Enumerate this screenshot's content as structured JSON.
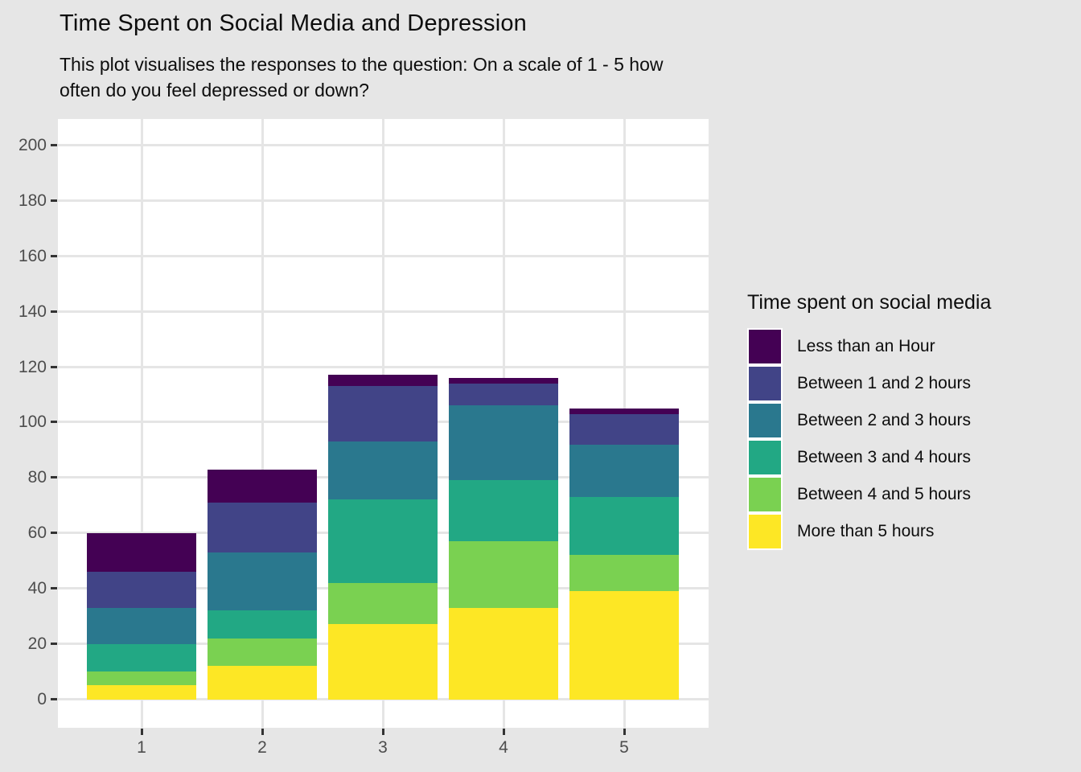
{
  "figure": {
    "title": "Time Spent on Social Media and Depression",
    "subtitle_lines": [
      "This plot visualises the responses to the question: On a scale of 1 - 5 how",
      "often do you feel depressed or down?"
    ]
  },
  "chart_data": {
    "type": "bar",
    "stacked": true,
    "stack_order": "first-series-on-top",
    "title": "Time Spent on Social Media and Depression",
    "subtitle": "This plot visualises the responses to the question: On a scale of 1 - 5 how often do you feel depressed or down?",
    "xlabel": "",
    "ylabel": "",
    "categories": [
      "1",
      "2",
      "3",
      "4",
      "5"
    ],
    "series": [
      {
        "name": "Less than an Hour",
        "color": "#440154",
        "values": [
          14,
          12,
          4,
          2,
          2
        ]
      },
      {
        "name": "Between 1 and 2 hours",
        "color": "#414487",
        "values": [
          13,
          18,
          20,
          8,
          11
        ]
      },
      {
        "name": "Between 2 and 3 hours",
        "color": "#2a788e",
        "values": [
          13,
          21,
          21,
          27,
          19
        ]
      },
      {
        "name": "Between 3 and 4 hours",
        "color": "#22a884",
        "values": [
          10,
          10,
          30,
          22,
          21
        ]
      },
      {
        "name": "Between 4 and 5 hours",
        "color": "#7ad151",
        "values": [
          5,
          10,
          15,
          24,
          13
        ]
      },
      {
        "name": "More than 5 hours",
        "color": "#fde725",
        "values": [
          5,
          12,
          27,
          33,
          39
        ]
      }
    ],
    "totals": [
      60,
      83,
      117,
      116,
      105
    ],
    "y_ticks": [
      0,
      20,
      40,
      60,
      80,
      100,
      120,
      140,
      160,
      180,
      200
    ],
    "ylim": [
      0,
      200
    ],
    "grid": "major-only",
    "legend_title": "Time spent on social media",
    "legend_position": "right",
    "colors": {
      "figure_background": "#e6e6e6",
      "panel_background": "#ffffff",
      "gridline": "#e5e5e5",
      "axis_text": "#4d4d4d",
      "tick_mark": "#333333",
      "title_text": "#0d0d0d"
    }
  }
}
